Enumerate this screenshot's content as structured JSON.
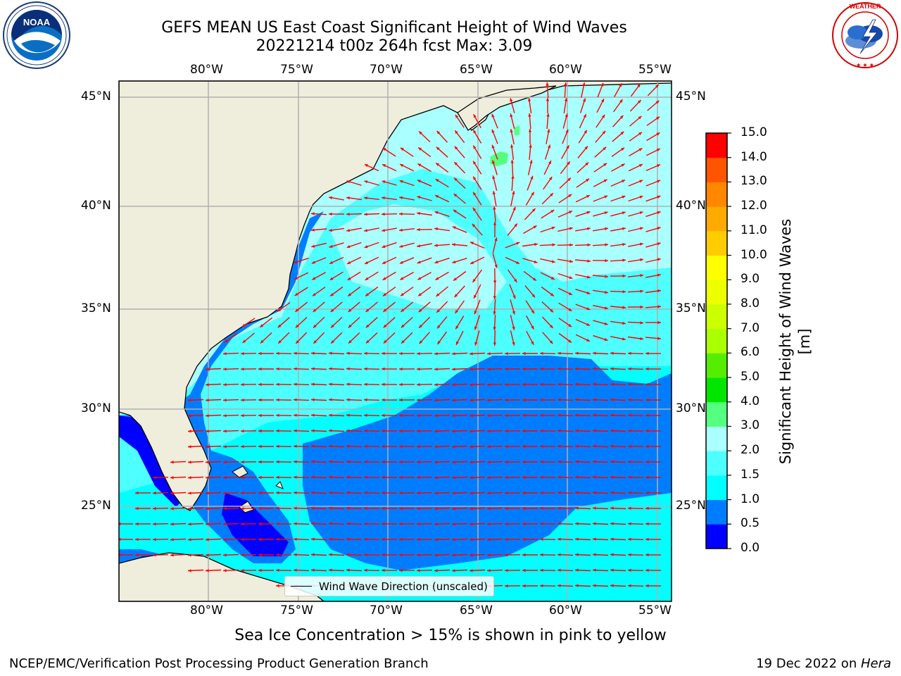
{
  "title_line1": "GEFS MEAN US East Coast Significant Height of Wind Waves",
  "title_line2": "20221214 t00z 264h fcst   Max: 3.09",
  "logos": {
    "left": {
      "text": "NOAA",
      "ring_text": "NATIONAL OCEANIC AND ATMOSPHERIC ADMINISTRATION · U.S. DEPARTMENT OF COMMERCE"
    },
    "right": {
      "ring_text": "NATIONAL WEATHER SERVICE"
    }
  },
  "map": {
    "lon_ticks": [
      "80°W",
      "75°W",
      "70°W",
      "65°W",
      "60°W",
      "55°W"
    ],
    "lat_ticks": [
      "45°N",
      "40°N",
      "35°N",
      "30°N",
      "25°N"
    ],
    "lon_range": [
      -85,
      -54
    ],
    "lat_range": [
      20.5,
      46
    ],
    "grid": true,
    "colors": {
      "land": "#efeddc",
      "gridline": "#b0b0b0",
      "arrow": "#ff0000"
    }
  },
  "legend": {
    "label": "Wind Wave Direction (unscaled)",
    "placement": "bottom-center"
  },
  "colorbar": {
    "title": "Significant Height of Wind Waves [m]",
    "ticks": [
      "15.0",
      "14.0",
      "13.0",
      "12.0",
      "11.0",
      "10.0",
      "9.0",
      "8.0",
      "7.0",
      "6.0",
      "5.0",
      "4.0",
      "3.0",
      "2.0",
      "1.5",
      "1.0",
      "0.5",
      "0.0"
    ],
    "bands": [
      {
        "min": 0.0,
        "max": 0.5,
        "color": "#0000ff"
      },
      {
        "min": 0.5,
        "max": 1.0,
        "color": "#007dff"
      },
      {
        "min": 1.0,
        "max": 1.5,
        "color": "#00ffff"
      },
      {
        "min": 1.5,
        "max": 2.0,
        "color": "#4dffff"
      },
      {
        "min": 2.0,
        "max": 3.0,
        "color": "#aaffff"
      },
      {
        "min": 3.0,
        "max": 4.0,
        "color": "#55ff7f"
      },
      {
        "min": 4.0,
        "max": 5.0,
        "color": "#00e600"
      },
      {
        "min": 5.0,
        "max": 6.0,
        "color": "#55ee00"
      },
      {
        "min": 6.0,
        "max": 7.0,
        "color": "#aaff00"
      },
      {
        "min": 7.0,
        "max": 8.0,
        "color": "#ccff00"
      },
      {
        "min": 8.0,
        "max": 9.0,
        "color": "#eeff00"
      },
      {
        "min": 9.0,
        "max": 10.0,
        "color": "#ffff00"
      },
      {
        "min": 10.0,
        "max": 11.0,
        "color": "#ffcc00"
      },
      {
        "min": 11.0,
        "max": 12.0,
        "color": "#ffaa00"
      },
      {
        "min": 12.0,
        "max": 13.0,
        "color": "#ff8800"
      },
      {
        "min": 13.0,
        "max": 14.0,
        "color": "#ff5500"
      },
      {
        "min": 14.0,
        "max": 15.0,
        "color": "#ff0000"
      }
    ]
  },
  "bottom_note": "Sea Ice Concentration > 15% is shown in pink to yellow",
  "footer": {
    "left": "NCEP/EMC/Verification Post Processing Product Generation Branch",
    "right_date": "19 Dec 2022 on ",
    "right_host": "Hera"
  }
}
